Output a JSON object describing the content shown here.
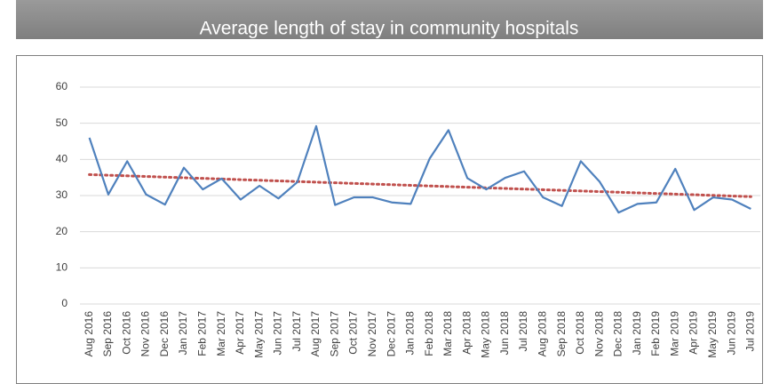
{
  "chart_data": {
    "type": "line",
    "title": "Average length of stay in community hospitals",
    "categories": [
      "Aug 2016",
      "Sep 2016",
      "Oct 2016",
      "Nov 2016",
      "Dec 2016",
      "Jan 2017",
      "Feb 2017",
      "Mar 2017",
      "Apr 2017",
      "May 2017",
      "Jun 2017",
      "Jul 2017",
      "Aug 2017",
      "Sep 2017",
      "Oct 2017",
      "Nov 2017",
      "Dec 2017",
      "Jan 2018",
      "Feb 2018",
      "Mar 2018",
      "Apr 2018",
      "May 2018",
      "Jun 2018",
      "Jul 2018",
      "Aug 2018",
      "Sep 2018",
      "Oct 2018",
      "Nov 2018",
      "Dec 2018",
      "Jan 2019",
      "Feb 2019",
      "Mar 2019",
      "Apr 2019",
      "May 2019",
      "Jun 2019",
      "Jul 2019"
    ],
    "values": [
      46,
      30.3,
      39.5,
      30.3,
      27.5,
      37.7,
      31.7,
      34.7,
      28.9,
      32.7,
      29.2,
      33.7,
      49.2,
      27.4,
      29.5,
      29.5,
      28.1,
      27.7,
      40.2,
      48.1,
      34.8,
      31.7,
      34.9,
      36.7,
      29.5,
      27.1,
      39.5,
      33.8,
      25.3,
      27.7,
      28.1,
      37.4,
      26.0,
      29.5,
      28.9,
      26.3
    ],
    "color": "#4f81bd",
    "trendline": {
      "color": "#c0504d",
      "start": 35.8,
      "end": 29.7
    },
    "ylim": [
      0,
      60
    ],
    "yticks": [
      0,
      10,
      20,
      30,
      40,
      50,
      60
    ],
    "grid": true
  }
}
